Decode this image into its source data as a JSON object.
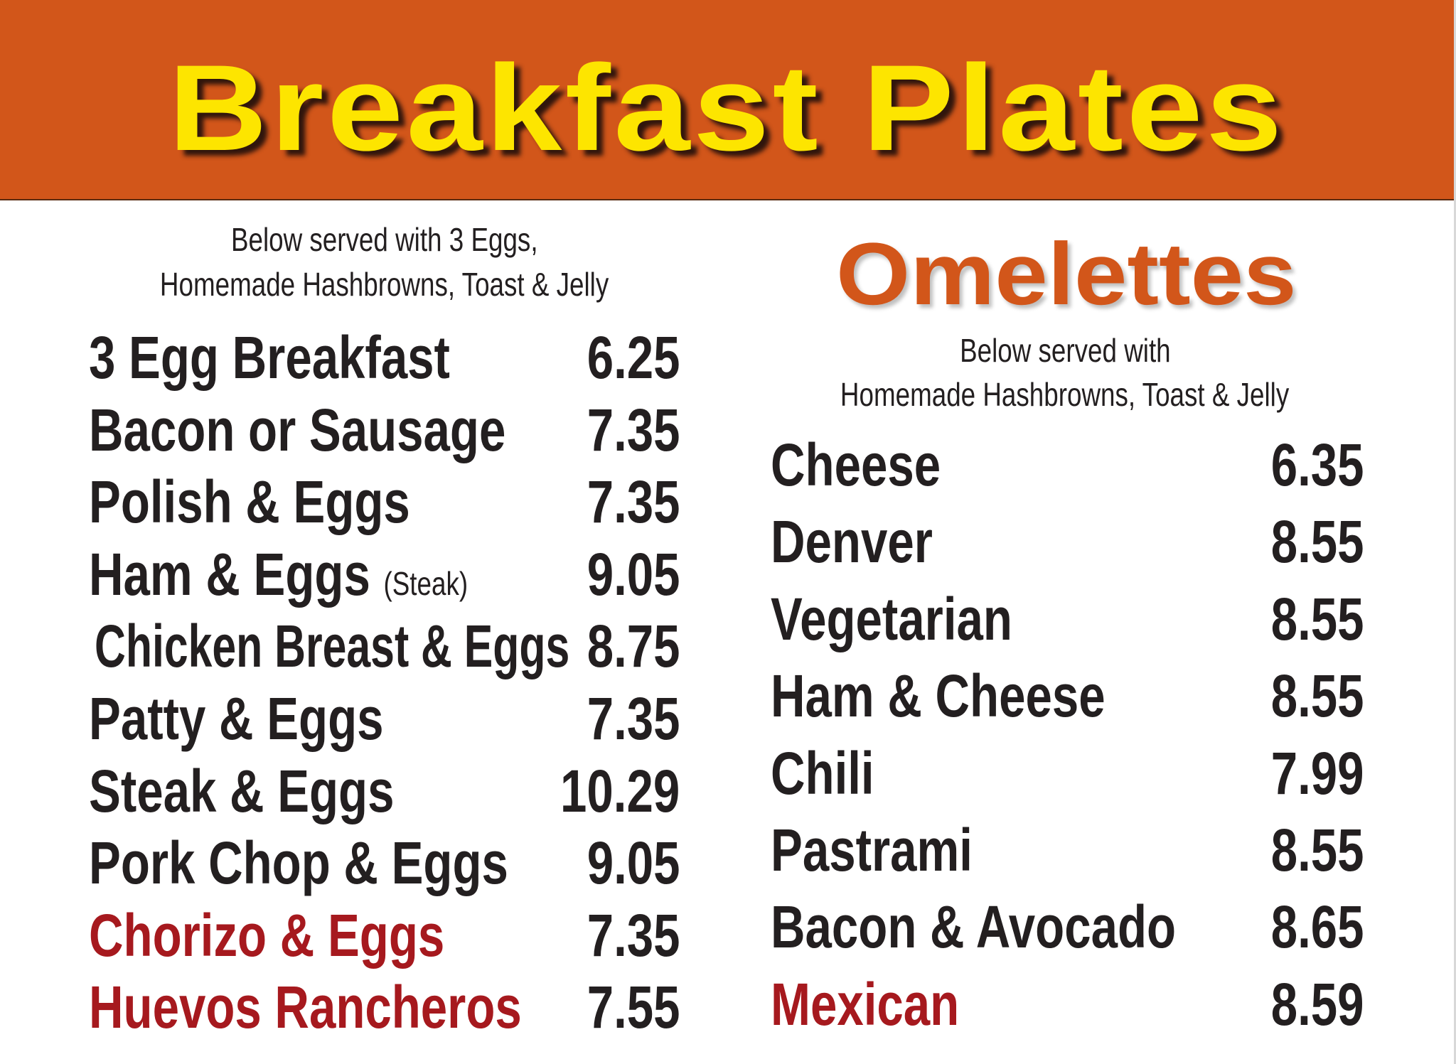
{
  "header": {
    "title": "Breakfast Plates"
  },
  "colors": {
    "header_bg": "#D2561A",
    "title": "#FDE500",
    "text": "#231F20",
    "highlight": "#A6191E"
  },
  "plates": {
    "subtitle_line1": "Below served with 3 Eggs,",
    "subtitle_line2": "Homemade Hashbrowns, Toast & Jelly",
    "items": [
      {
        "name": "3 Egg Breakfast",
        "price": "6.25"
      },
      {
        "name": "Bacon or Sausage",
        "price": "7.35"
      },
      {
        "name": "Polish & Eggs",
        "price": "7.35"
      },
      {
        "name": "Ham & Eggs",
        "note": "(Steak)",
        "price": "9.05"
      },
      {
        "name": "Chicken Breast & Eggs",
        "price": "8.75"
      },
      {
        "name": "Patty & Eggs",
        "price": "7.35"
      },
      {
        "name": "Steak & Eggs",
        "price": "10.29"
      },
      {
        "name": "Pork Chop & Eggs",
        "price": "9.05"
      },
      {
        "name": "Chorizo & Eggs",
        "price": "7.35",
        "highlight": true
      },
      {
        "name": "Huevos Rancheros",
        "price": "7.55",
        "highlight": true
      }
    ]
  },
  "omelettes": {
    "title": "Omelettes",
    "subtitle_line1": "Below served with",
    "subtitle_line2": "Homemade Hashbrowns, Toast & Jelly",
    "items": [
      {
        "name": "Cheese",
        "price": "6.35"
      },
      {
        "name": "Denver",
        "price": "8.55"
      },
      {
        "name": "Vegetarian",
        "price": "8.55"
      },
      {
        "name": "Ham & Cheese",
        "price": "8.55"
      },
      {
        "name": "Chili",
        "price": "7.99"
      },
      {
        "name": "Pastrami",
        "price": "8.55"
      },
      {
        "name": "Bacon & Avocado",
        "price": "8.65"
      },
      {
        "name": "Mexican",
        "price": "8.59",
        "highlight": true
      }
    ]
  }
}
